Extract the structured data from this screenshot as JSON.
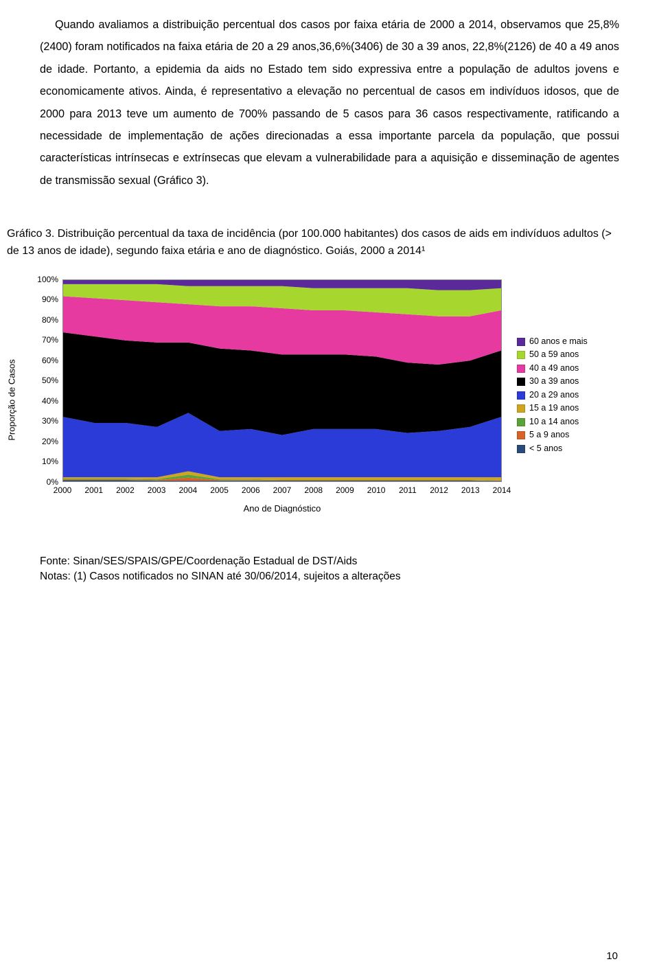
{
  "paragraph": "Quando avaliamos a distribuição percentual dos casos por faixa etária de 2000 a 2014, observamos que 25,8%(2400) foram notificados na faixa etária de 20 a 29 anos,36,6%(3406) de 30 a 39 anos, 22,8%(2126) de 40 a 49 anos de idade. Portanto, a epidemia da aids no Estado tem sido expressiva entre a população de adultos jovens e economicamente ativos. Ainda, é representativo a elevação no percentual de casos em indivíduos idosos, que de 2000 para 2013 teve um aumento de 700% passando de 5 casos para 36 casos respectivamente, ratificando a necessidade de implementação de ações direcionadas a essa importante parcela da população, que possui características intrínsecas e extrínsecas que elevam a vulnerabilidade para a aquisição e disseminação de agentes de transmissão sexual (Gráfico 3).",
  "caption": "Gráfico 3. Distribuição percentual da taxa de incidência (por 100.000 habitantes) dos casos de aids em indivíduos adultos (> de 13 anos de idade), segundo faixa etária e ano de diagnóstico. Goiás, 2000 a 2014¹",
  "source": "Fonte: Sinan/SES/SPAIS/GPE/Coordenação Estadual de DST/Aids",
  "notes": "Notas:  (1) Casos notificados no SINAN até 30/06/2014, sujeitos a alterações",
  "page_number": "10",
  "chart": {
    "type": "area-stacked-100",
    "ylabel": "Proporção de Casos",
    "xlabel": "Ano de Diagnóstico",
    "background_color": "#ffffff",
    "border_color": "#888888",
    "yticks": [
      "0%",
      "10%",
      "20%",
      "30%",
      "40%",
      "50%",
      "60%",
      "70%",
      "80%",
      "90%",
      "100%"
    ],
    "years": [
      "2000",
      "2001",
      "2002",
      "2003",
      "2004",
      "2005",
      "2006",
      "2007",
      "2008",
      "2009",
      "2010",
      "2011",
      "2012",
      "2013",
      "2014"
    ],
    "series": [
      {
        "name": "< 5 anos",
        "color": "#2a4a7a",
        "legend": "< 5 anos",
        "values": [
          0.5,
          0.5,
          0.5,
          0.3,
          0.3,
          0.3,
          0.3,
          0.3,
          0.3,
          0.3,
          0.3,
          0.3,
          0.3,
          0.3,
          0.2
        ]
      },
      {
        "name": "5 a 9 anos",
        "color": "#d7632b",
        "legend": "5 a 9 anos",
        "values": [
          0.3,
          0.3,
          0.3,
          0.3,
          1.5,
          0.3,
          0.3,
          0.2,
          0.2,
          0.2,
          0.2,
          0.2,
          0.2,
          0.2,
          0.1
        ]
      },
      {
        "name": "10 a 14 anos",
        "color": "#5aa23a",
        "legend": "10 a 14 anos",
        "values": [
          0.4,
          0.4,
          0.4,
          0.4,
          1.5,
          0.4,
          0.3,
          0.2,
          0.2,
          0.2,
          0.2,
          0.2,
          0.2,
          0.2,
          0.1
        ]
      },
      {
        "name": "15 a 19 anos",
        "color": "#cfa41e",
        "legend": "15 a 19 anos",
        "values": [
          0.8,
          0.8,
          0.8,
          1.0,
          1.7,
          1.0,
          1.1,
          1.3,
          1.3,
          1.3,
          1.3,
          1.3,
          1.3,
          1.3,
          1.6
        ]
      },
      {
        "name": "20 a 29 anos",
        "color": "#2a3bd8",
        "legend": "20 a 29 anos",
        "values": [
          30,
          27,
          27,
          25,
          29,
          23,
          24,
          21,
          24,
          24,
          24,
          22,
          23,
          25,
          30
        ]
      },
      {
        "name": "30 a 39 anos",
        "color": "#000000",
        "legend": "30 a 39 anos",
        "values": [
          42,
          43,
          41,
          42,
          35,
          41,
          39,
          40,
          37,
          37,
          36,
          35,
          33,
          33,
          33
        ]
      },
      {
        "name": "40 a 49 anos",
        "color": "#e63aa0",
        "legend": "40 a 49 anos",
        "values": [
          18,
          19,
          20,
          20,
          19,
          21,
          22,
          23,
          22,
          22,
          22,
          24,
          24,
          22,
          20
        ]
      },
      {
        "name": "50 a 59 anos",
        "color": "#a7d62e",
        "legend": "50 a 59 anos",
        "values": [
          6,
          7,
          8,
          9,
          9,
          10,
          10,
          11,
          11,
          11,
          12,
          13,
          13,
          13,
          11
        ]
      },
      {
        "name": "60 anos e mais",
        "color": "#5a2a9a",
        "legend": "60 anos e mais",
        "values": [
          2,
          2,
          2,
          2,
          3,
          3,
          3,
          3,
          4,
          4,
          4,
          4,
          5,
          5,
          4
        ]
      }
    ],
    "legend_order": [
      "60 anos e mais",
      "50 a 59 anos",
      "40 a 49 anos",
      "30 a 39 anos",
      "20 a 29 anos",
      "15 a 19 anos",
      "10 a 14 anos",
      "5 a 9 anos",
      "< 5 anos"
    ],
    "ylim": [
      0,
      100
    ],
    "label_fontsize": 12
  }
}
